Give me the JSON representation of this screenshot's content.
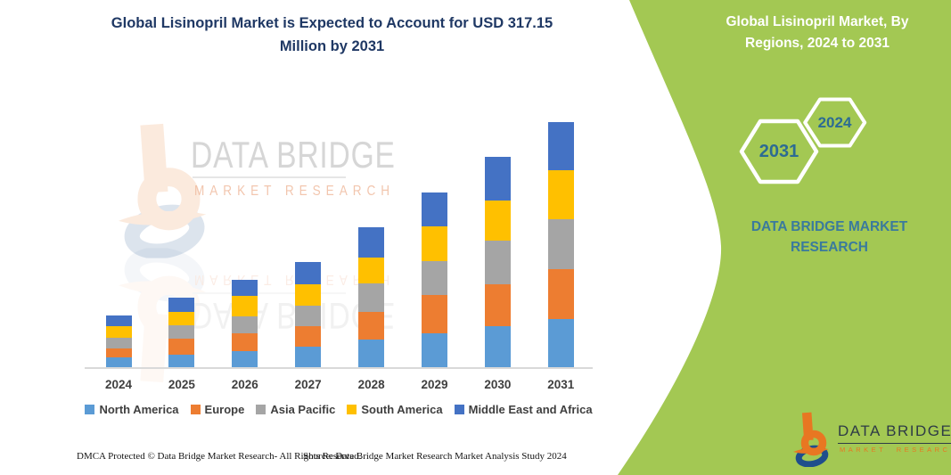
{
  "theme": {
    "green": "#A3C853",
    "title_blue": "#1F3864",
    "hexagon_year_color": "#2C6B93",
    "dbmr_teal": "#3A7A9D",
    "logo_orange": "#E87722",
    "logo_blue": "#1F4E8C",
    "axis_line": "#D9D9D9",
    "tick_color": "#3F3F3F"
  },
  "chart_data": {
    "type": "bar",
    "stacked": true,
    "title": "Global Lisinopril Market is Expected to Account for USD 317.15 Million by 2031",
    "unit": "USD Million",
    "categories": [
      "2024",
      "2025",
      "2026",
      "2027",
      "2028",
      "2029",
      "2030",
      "2031"
    ],
    "series": [
      {
        "name": "North America",
        "color": "#5B9BD5",
        "values": [
          13.4,
          17.2,
          21.8,
          27.6,
          36.4,
          44.8,
          53.7,
          63.2
        ]
      },
      {
        "name": "Europe",
        "color": "#ED7D31",
        "values": [
          12.3,
          21.0,
          23.0,
          26.0,
          36.4,
          49.8,
          54.8,
          64.0
        ]
      },
      {
        "name": "Asia Pacific",
        "color": "#A5A5A5",
        "values": [
          13.4,
          17.2,
          22.2,
          26.9,
          36.4,
          43.3,
          55.5,
          64.3
        ]
      },
      {
        "name": "South America",
        "color": "#FFC000",
        "values": [
          14.6,
          17.2,
          25.6,
          27.6,
          33.3,
          44.8,
          52.5,
          63.2
        ]
      },
      {
        "name": "Middle East and Africa",
        "color": "#4472C4",
        "values": [
          14.6,
          17.6,
          21.1,
          28.7,
          39.4,
          44.0,
          56.3,
          62.5
        ]
      }
    ],
    "totals": [
      68.3,
      90.2,
      113.7,
      136.8,
      181.9,
      226.7,
      272.8,
      317.2
    ],
    "legend_position": "bottom",
    "grid": false,
    "ylim": [
      0,
      320
    ]
  },
  "right_panel": {
    "title": "Global Lisinopril Market, By Regions, 2024 to 2031",
    "hexagons": [
      {
        "label": "2031"
      },
      {
        "label": "2024"
      }
    ],
    "brand": "DATA BRIDGE MARKET RESEARCH"
  },
  "watermark": {
    "line1": "DATA BRIDGE",
    "line2": "MARKET RESEARCH"
  },
  "footer": {
    "dmca": "DMCA Protected © Data Bridge Market Research-  All Rights Reserved.",
    "source": "Source: Data Bridge Market Research  Market Analysis Study 2024",
    "logo_title": "DATA BRIDGE",
    "logo_subtitle": "MARKET RESEARCH"
  }
}
